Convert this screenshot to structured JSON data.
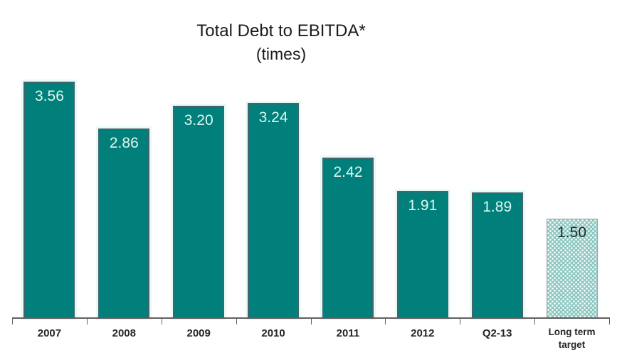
{
  "chart_data": {
    "type": "bar",
    "title": "Total Debt to EBITDA*",
    "subtitle": "(times)",
    "categories": [
      "2007",
      "2008",
      "2009",
      "2010",
      "2011",
      "2012",
      "Q2-13",
      "Long term target"
    ],
    "values": [
      3.56,
      2.86,
      3.2,
      3.24,
      2.42,
      1.91,
      1.89,
      1.5
    ],
    "value_labels": [
      "3.56",
      "2.86",
      "3.20",
      "3.24",
      "2.42",
      "1.91",
      "1.89",
      "1.50"
    ],
    "xlabel": "",
    "ylabel": "",
    "ylim": [
      0,
      3.8
    ],
    "grid": false,
    "legend": false,
    "bar_color": "#01807B",
    "bar_border_color": "#43646C",
    "bar_halo_color": "#E6FAF7",
    "value_label_color": "#DFF6F1",
    "axis_color": "#5F5F5F",
    "target_bar": {
      "category": "Long term target",
      "style": "dotted-pattern",
      "fill_color": "#8FC8C2",
      "dot_color": "#FFFFFF",
      "value_label_color": "#1A2B2B"
    }
  }
}
